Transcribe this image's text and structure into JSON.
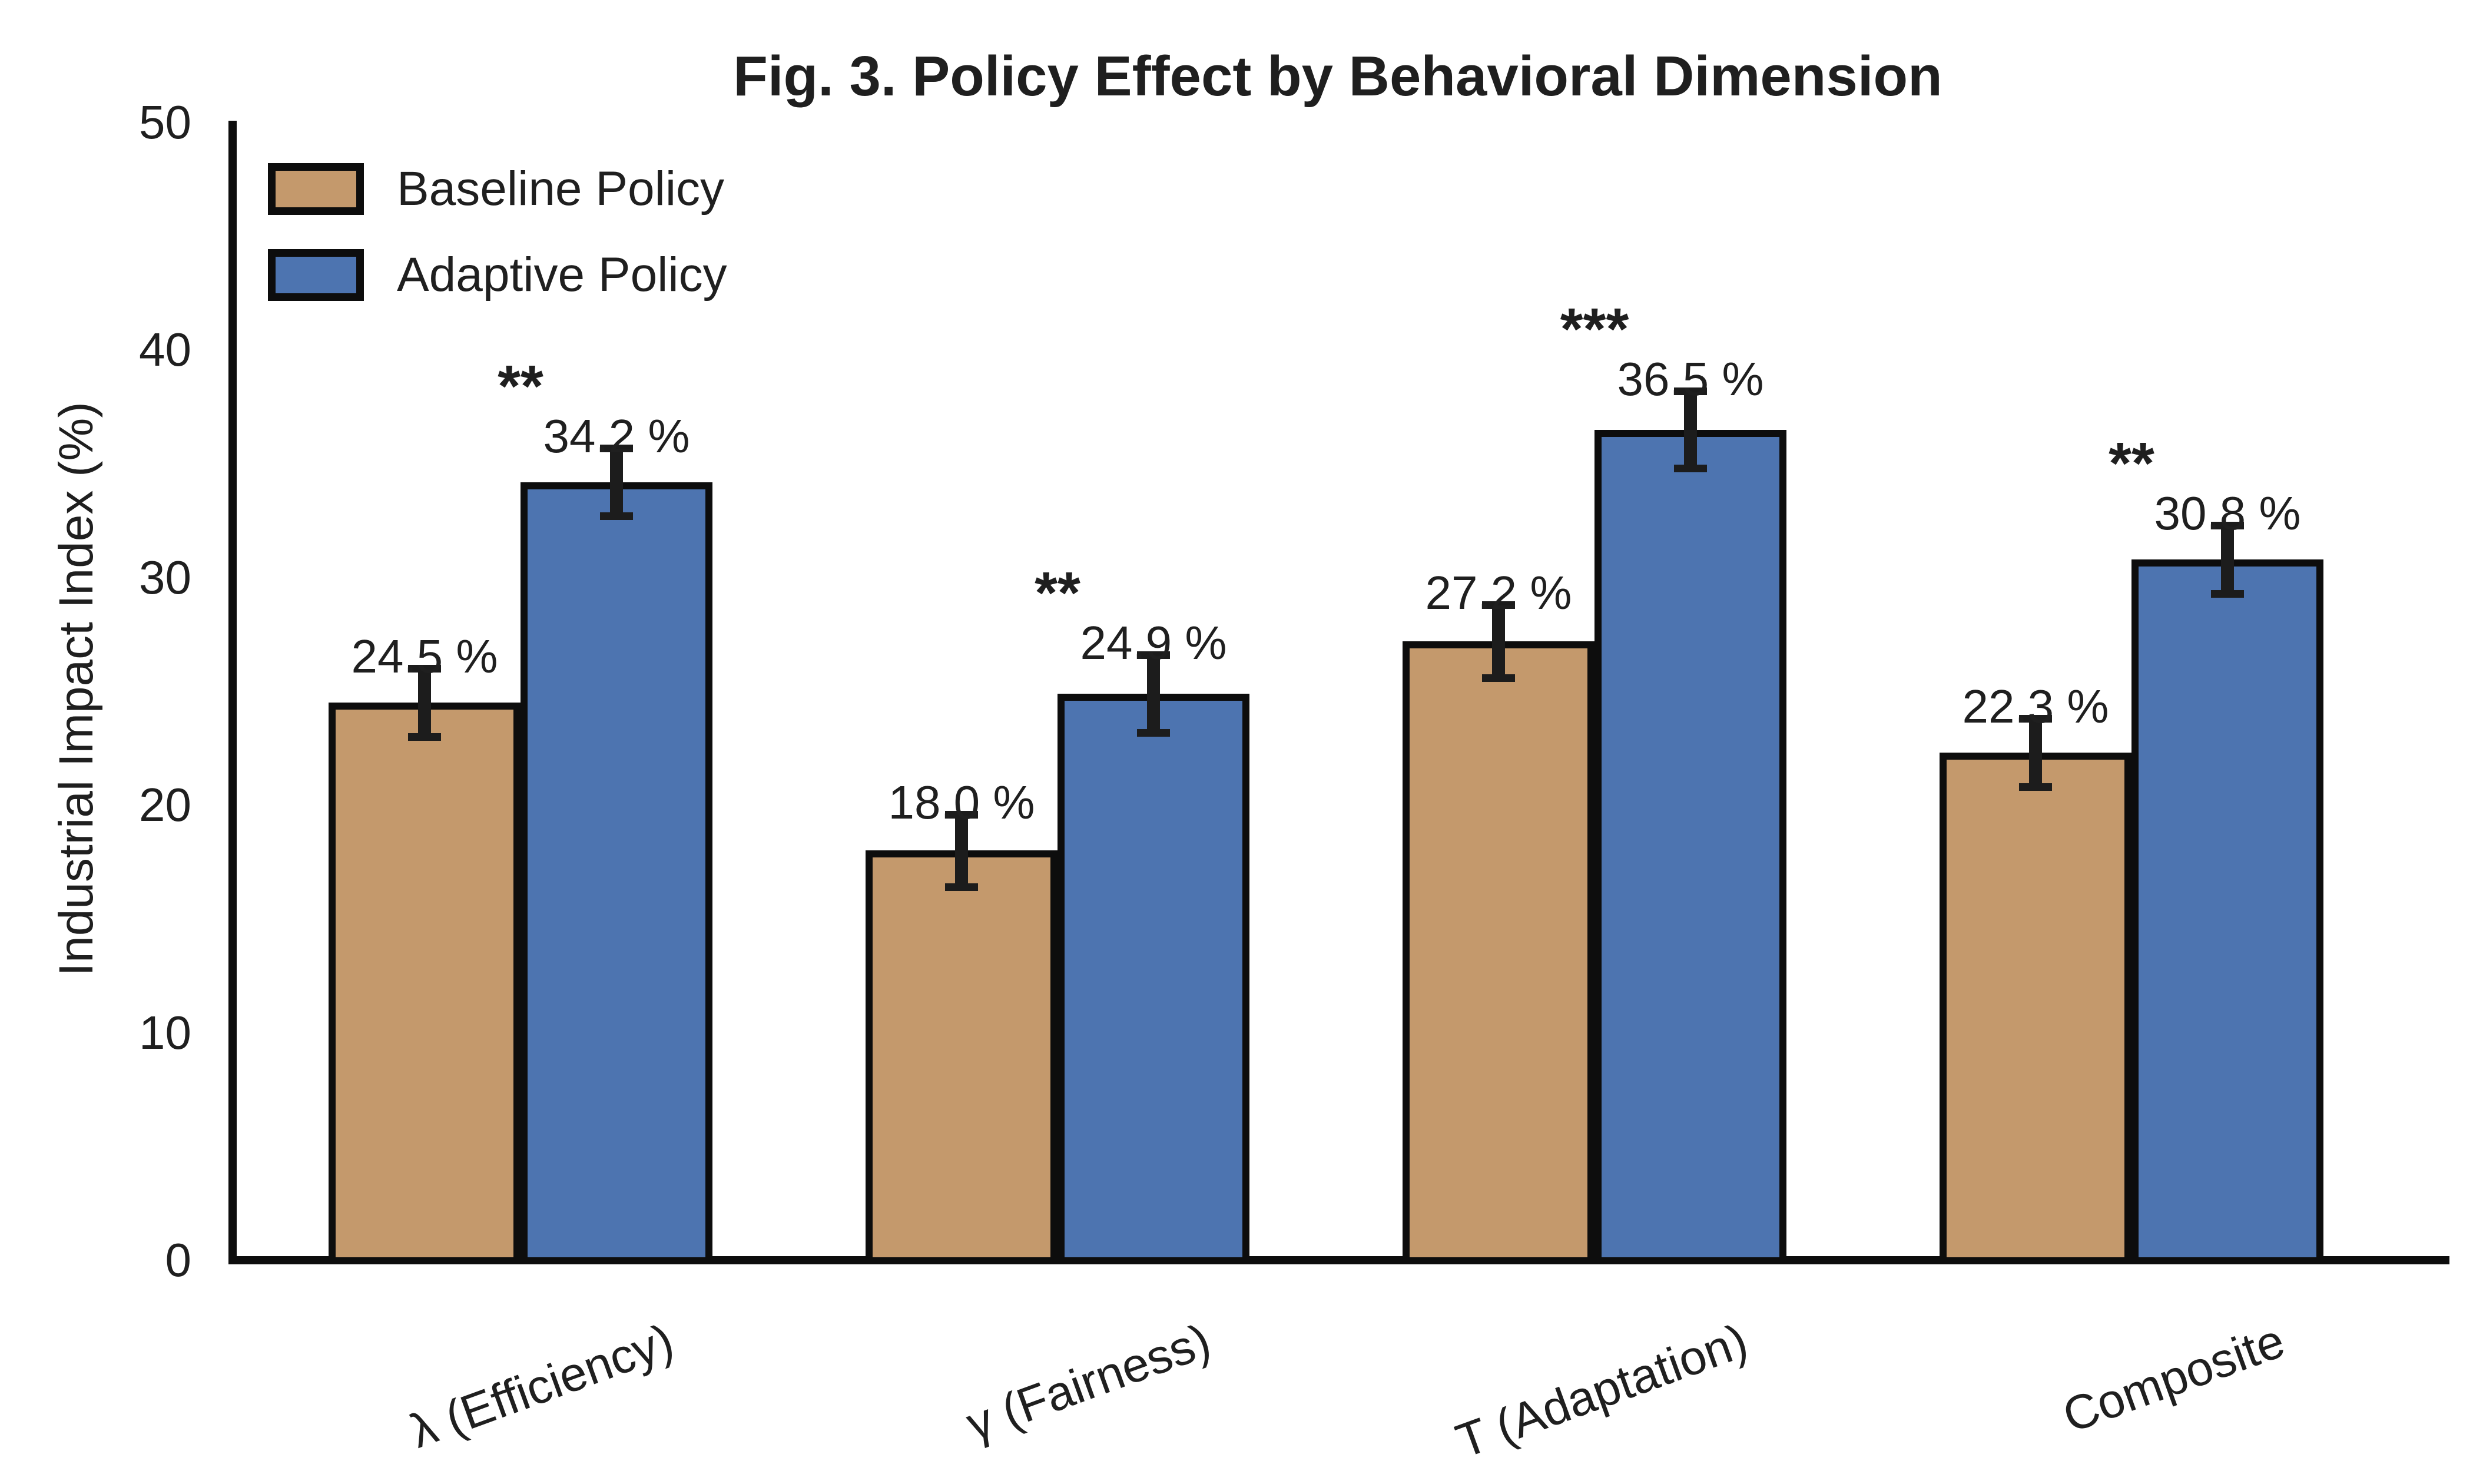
{
  "figure": {
    "title": "Fig. 3. Policy Effect by Behavioral Dimension",
    "ylabel": "Industrial Impact Index (%)",
    "background_color": "#ffffff",
    "axis_color": "#0d0d0d",
    "text_color": "#1f1f1f"
  },
  "legend": {
    "position": "upper left",
    "entries": [
      {
        "label": "Baseline Policy",
        "color": "#C4996C"
      },
      {
        "label": "Adaptive Policy",
        "color": "#4D74B0"
      }
    ]
  },
  "chart_data": {
    "type": "bar",
    "title": "Fig. 3. Policy Effect by Behavioral Dimension",
    "xlabel": "",
    "ylabel": "Industrial Impact Index (%)",
    "ylim": [
      0,
      50
    ],
    "yticks": [
      0,
      10,
      20,
      30,
      40,
      50
    ],
    "grid": false,
    "legend_position": "upper left",
    "categories": [
      "λ (Efficiency)",
      "γ (Fairness)",
      "T (Adaptation)",
      "Composite"
    ],
    "series": [
      {
        "name": "Baseline Policy",
        "color": "#C4996C",
        "values": [
          24.5,
          18.0,
          27.2,
          22.3
        ],
        "errors": [
          1.5,
          1.6,
          1.6,
          1.5
        ],
        "value_labels": [
          "24.5 %",
          "18.0 %",
          "27.2 %",
          "22.3 %"
        ]
      },
      {
        "name": "Adaptive Policy",
        "color": "#4D74B0",
        "values": [
          34.2,
          24.9,
          36.5,
          30.8
        ],
        "errors": [
          1.5,
          1.7,
          1.7,
          1.5
        ],
        "value_labels": [
          "34.2 %",
          "24.9 %",
          "36.5 %",
          "30.8 %"
        ]
      }
    ],
    "significance_markers": [
      "**",
      "**",
      "***",
      "**"
    ],
    "bar_edge_color": "#0d0d0d",
    "error_bar_color": "#1c1c1c"
  }
}
